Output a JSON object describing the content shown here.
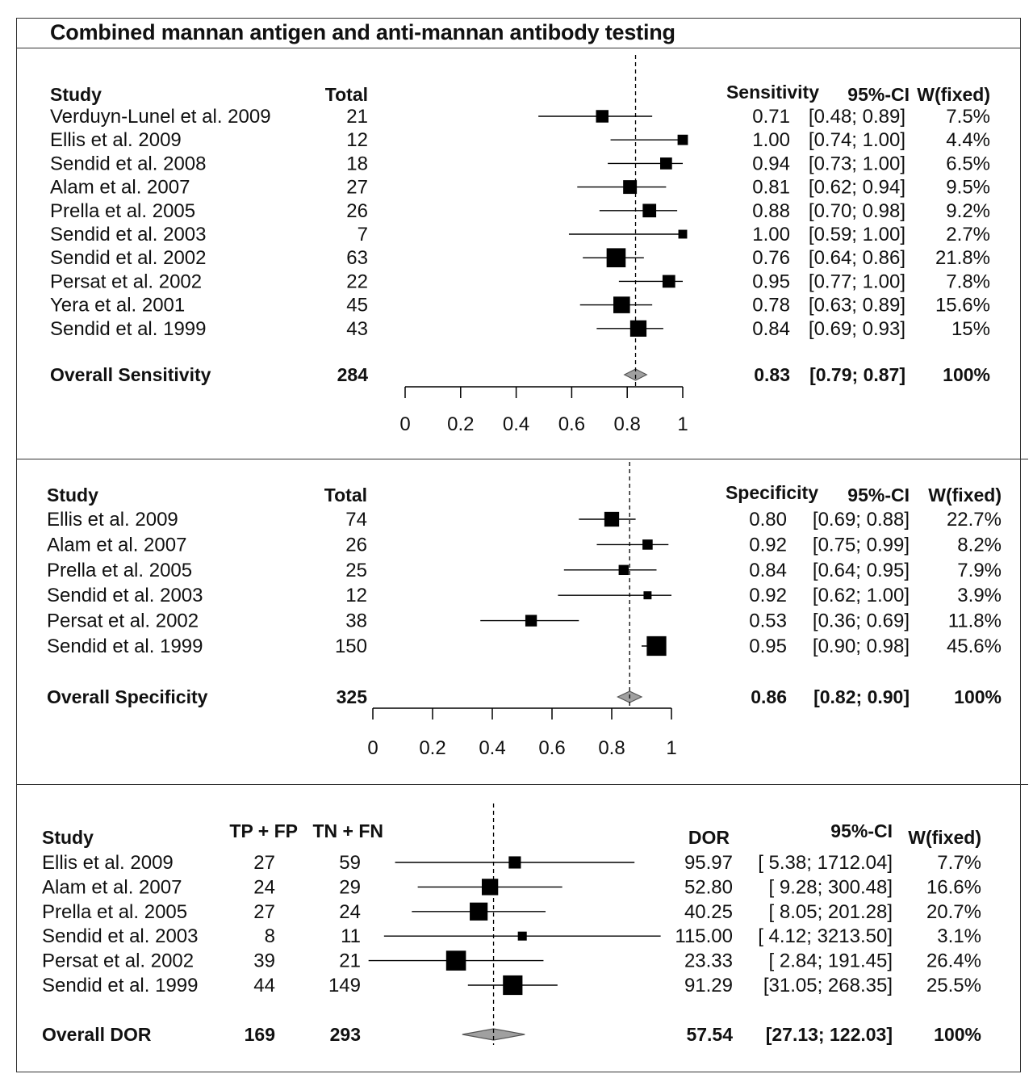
{
  "title": "Combined mannan antigen and anti-mannan antibody testing",
  "chart_data": [
    {
      "type": "forest",
      "id": "sens",
      "headers": {
        "study": "Study",
        "total": "Total",
        "estimate": "Sensitivity",
        "ci": "95%-CI",
        "weight": "W(fixed)"
      },
      "rows": [
        {
          "study": "Verduyn-Lunel et al. 2009",
          "total": "21",
          "est": 0.71,
          "lo": 0.48,
          "hi": 0.89,
          "est_label": "0.71",
          "ci_label": "[0.48; 0.89]",
          "weight": "7.5%",
          "w": 7.5
        },
        {
          "study": "Ellis et al. 2009",
          "total": "12",
          "est": 1.0,
          "lo": 0.74,
          "hi": 1.0,
          "est_label": "1.00",
          "ci_label": "[0.74; 1.00]",
          "weight": "4.4%",
          "w": 4.4
        },
        {
          "study": "Sendid et al. 2008",
          "total": "18",
          "est": 0.94,
          "lo": 0.73,
          "hi": 1.0,
          "est_label": "0.94",
          "ci_label": "[0.73; 1.00]",
          "weight": "6.5%",
          "w": 6.5
        },
        {
          "study": "Alam et al. 2007",
          "total": "27",
          "est": 0.81,
          "lo": 0.62,
          "hi": 0.94,
          "est_label": "0.81",
          "ci_label": "[0.62; 0.94]",
          "weight": "9.5%",
          "w": 9.5
        },
        {
          "study": "Prella et al. 2005",
          "total": "26",
          "est": 0.88,
          "lo": 0.7,
          "hi": 0.98,
          "est_label": "0.88",
          "ci_label": "[0.70; 0.98]",
          "weight": "9.2%",
          "w": 9.2
        },
        {
          "study": "Sendid et al. 2003",
          "total": "7",
          "est": 1.0,
          "lo": 0.59,
          "hi": 1.0,
          "est_label": "1.00",
          "ci_label": "[0.59; 1.00]",
          "weight": "2.7%",
          "w": 2.7
        },
        {
          "study": "Sendid et al. 2002",
          "total": "63",
          "est": 0.76,
          "lo": 0.64,
          "hi": 0.86,
          "est_label": "0.76",
          "ci_label": "[0.64; 0.86]",
          "weight": "21.8%",
          "w": 21.8
        },
        {
          "study": "Persat et al. 2002",
          "total": "22",
          "est": 0.95,
          "lo": 0.77,
          "hi": 1.0,
          "est_label": "0.95",
          "ci_label": "[0.77; 1.00]",
          "weight": "7.8%",
          "w": 7.8
        },
        {
          "study": "Yera et al. 2001",
          "total": "45",
          "est": 0.78,
          "lo": 0.63,
          "hi": 0.89,
          "est_label": "0.78",
          "ci_label": "[0.63; 0.89]",
          "weight": "15.6%",
          "w": 15.6
        },
        {
          "study": "Sendid et al. 1999",
          "total": "43",
          "est": 0.84,
          "lo": 0.69,
          "hi": 0.93,
          "est_label": "0.84",
          "ci_label": "[0.69; 0.93]",
          "weight": "15%",
          "w": 15
        }
      ],
      "overall": {
        "label": "Overall Sensitivity",
        "total": "284",
        "est": 0.83,
        "lo": 0.79,
        "hi": 0.87,
        "est_label": "0.83",
        "ci_label": "[0.79; 0.87]",
        "weight": "100%"
      },
      "axis": {
        "range": [
          0,
          1
        ],
        "ticks": [
          0,
          0.2,
          0.4,
          0.6,
          0.8,
          1
        ],
        "tick_labels": [
          "0",
          "0.2",
          "0.4",
          "0.6",
          "0.8",
          "1"
        ]
      },
      "reference_line": 0.83
    },
    {
      "type": "forest",
      "id": "spec",
      "headers": {
        "study": "Study",
        "total": "Total",
        "estimate": "Specificity",
        "ci": "95%-CI",
        "weight": "W(fixed)"
      },
      "rows": [
        {
          "study": "Ellis et al. 2009",
          "total": "74",
          "est": 0.8,
          "lo": 0.69,
          "hi": 0.88,
          "est_label": "0.80",
          "ci_label": "[0.69; 0.88]",
          "weight": "22.7%",
          "w": 22.7
        },
        {
          "study": "Alam et al. 2007",
          "total": "26",
          "est": 0.92,
          "lo": 0.75,
          "hi": 0.99,
          "est_label": "0.92",
          "ci_label": "[0.75; 0.99]",
          "weight": "8.2%",
          "w": 8.2
        },
        {
          "study": "Prella et al. 2005",
          "total": "25",
          "est": 0.84,
          "lo": 0.64,
          "hi": 0.95,
          "est_label": "0.84",
          "ci_label": "[0.64; 0.95]",
          "weight": "7.9%",
          "w": 7.9
        },
        {
          "study": "Sendid et al. 2003",
          "total": "12",
          "est": 0.92,
          "lo": 0.62,
          "hi": 1.0,
          "est_label": "0.92",
          "ci_label": "[0.62; 1.00]",
          "weight": "3.9%",
          "w": 3.9
        },
        {
          "study": "Persat et al. 2002",
          "total": "38",
          "est": 0.53,
          "lo": 0.36,
          "hi": 0.69,
          "est_label": "0.53",
          "ci_label": "[0.36; 0.69]",
          "weight": "11.8%",
          "w": 11.8
        },
        {
          "study": "Sendid et al. 1999",
          "total": "150",
          "est": 0.95,
          "lo": 0.9,
          "hi": 0.98,
          "est_label": "0.95",
          "ci_label": "[0.90; 0.98]",
          "weight": "45.6%",
          "w": 45.6
        }
      ],
      "overall": {
        "label": "Overall Specificity",
        "total": "325",
        "est": 0.86,
        "lo": 0.82,
        "hi": 0.9,
        "est_label": "0.86",
        "ci_label": "[0.82; 0.90]",
        "weight": "100%"
      },
      "axis": {
        "range": [
          0,
          1
        ],
        "ticks": [
          0,
          0.2,
          0.4,
          0.6,
          0.8,
          1
        ],
        "tick_labels": [
          "0",
          "0.2",
          "0.4",
          "0.6",
          "0.8",
          "1"
        ]
      },
      "reference_line": 0.86
    },
    {
      "type": "forest",
      "id": "dor",
      "log_scale": true,
      "headers": {
        "study": "Study",
        "tpfp": "TP + FP",
        "tnfn": "TN + FN",
        "estimate": "DOR",
        "ci": "95%-CI",
        "weight": "W(fixed)"
      },
      "rows": [
        {
          "study": "Ellis et al. 2009",
          "tpfp": "27",
          "tnfn": "59",
          "est": 95.97,
          "lo": 5.38,
          "hi": 1712.04,
          "est_label": "95.97",
          "ci_label": "[ 5.38; 1712.04]",
          "weight": "7.7%",
          "w": 7.7
        },
        {
          "study": "Alam et al. 2007",
          "tpfp": "24",
          "tnfn": "29",
          "est": 52.8,
          "lo": 9.28,
          "hi": 300.48,
          "est_label": "52.80",
          "ci_label": "[ 9.28; 300.48]",
          "weight": "16.6%",
          "w": 16.6
        },
        {
          "study": "Prella et al. 2005",
          "tpfp": "27",
          "tnfn": "24",
          "est": 40.25,
          "lo": 8.05,
          "hi": 201.28,
          "est_label": "40.25",
          "ci_label": "[ 8.05; 201.28]",
          "weight": "20.7%",
          "w": 20.7
        },
        {
          "study": "Sendid et al. 2003",
          "tpfp": "8",
          "tnfn": "11",
          "est": 115.0,
          "lo": 4.12,
          "hi": 3213.5,
          "est_label": "115.00",
          "ci_label": "[ 4.12; 3213.50]",
          "weight": "3.1%",
          "w": 3.1
        },
        {
          "study": "Persat et al. 2002",
          "tpfp": "39",
          "tnfn": "21",
          "est": 23.33,
          "lo": 2.84,
          "hi": 191.45,
          "est_label": "23.33",
          "ci_label": "[ 2.84; 191.45]",
          "weight": "26.4%",
          "w": 26.4
        },
        {
          "study": "Sendid et al. 1999",
          "tpfp": "44",
          "tnfn": "149",
          "est": 91.29,
          "lo": 31.05,
          "hi": 268.35,
          "est_label": "91.29",
          "ci_label": "[31.05; 268.35]",
          "weight": "25.5%",
          "w": 25.5
        }
      ],
      "overall": {
        "label": "Overall DOR",
        "tpfp": "169",
        "tnfn": "293",
        "est": 57.54,
        "lo": 27.13,
        "hi": 122.03,
        "est_label": "57.54",
        "ci_label": "[27.13; 122.03]",
        "weight": "100%"
      },
      "reference_line": 57.54
    }
  ]
}
